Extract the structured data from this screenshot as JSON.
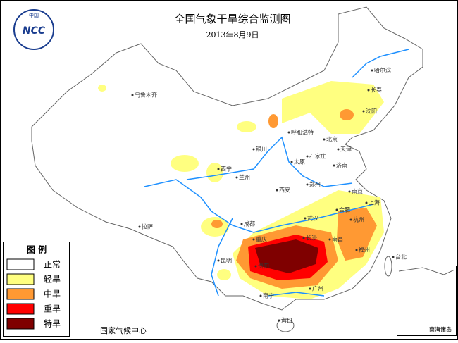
{
  "header": {
    "logo_text": "NCC",
    "logo_country": "中国",
    "title": "全国气象干旱综合监测图",
    "date": "2013年8月9日"
  },
  "legend": {
    "title": "图 例",
    "items": [
      {
        "label": "正常",
        "color": "#ffffff"
      },
      {
        "label": "轻旱",
        "color": "#ffff80"
      },
      {
        "label": "中旱",
        "color": "#ff9933"
      },
      {
        "label": "重旱",
        "color": "#ff0000"
      },
      {
        "label": "特旱",
        "color": "#7f0000"
      }
    ]
  },
  "footer": "国家气候中心",
  "inset_label": "南海诸岛",
  "cities": [
    "乌鲁木齐",
    "拉萨",
    "西宁",
    "兰州",
    "银川",
    "呼和浩特",
    "北京",
    "天津",
    "石家庄",
    "太原",
    "济南",
    "郑州",
    "西安",
    "成都",
    "重庆",
    "武汉",
    "合肥",
    "南京",
    "上海",
    "杭州",
    "长沙",
    "南昌",
    "贵阳",
    "福州",
    "昆明",
    "南宁",
    "广州",
    "台北",
    "海口",
    "哈尔滨",
    "长春",
    "沈阳"
  ]
}
